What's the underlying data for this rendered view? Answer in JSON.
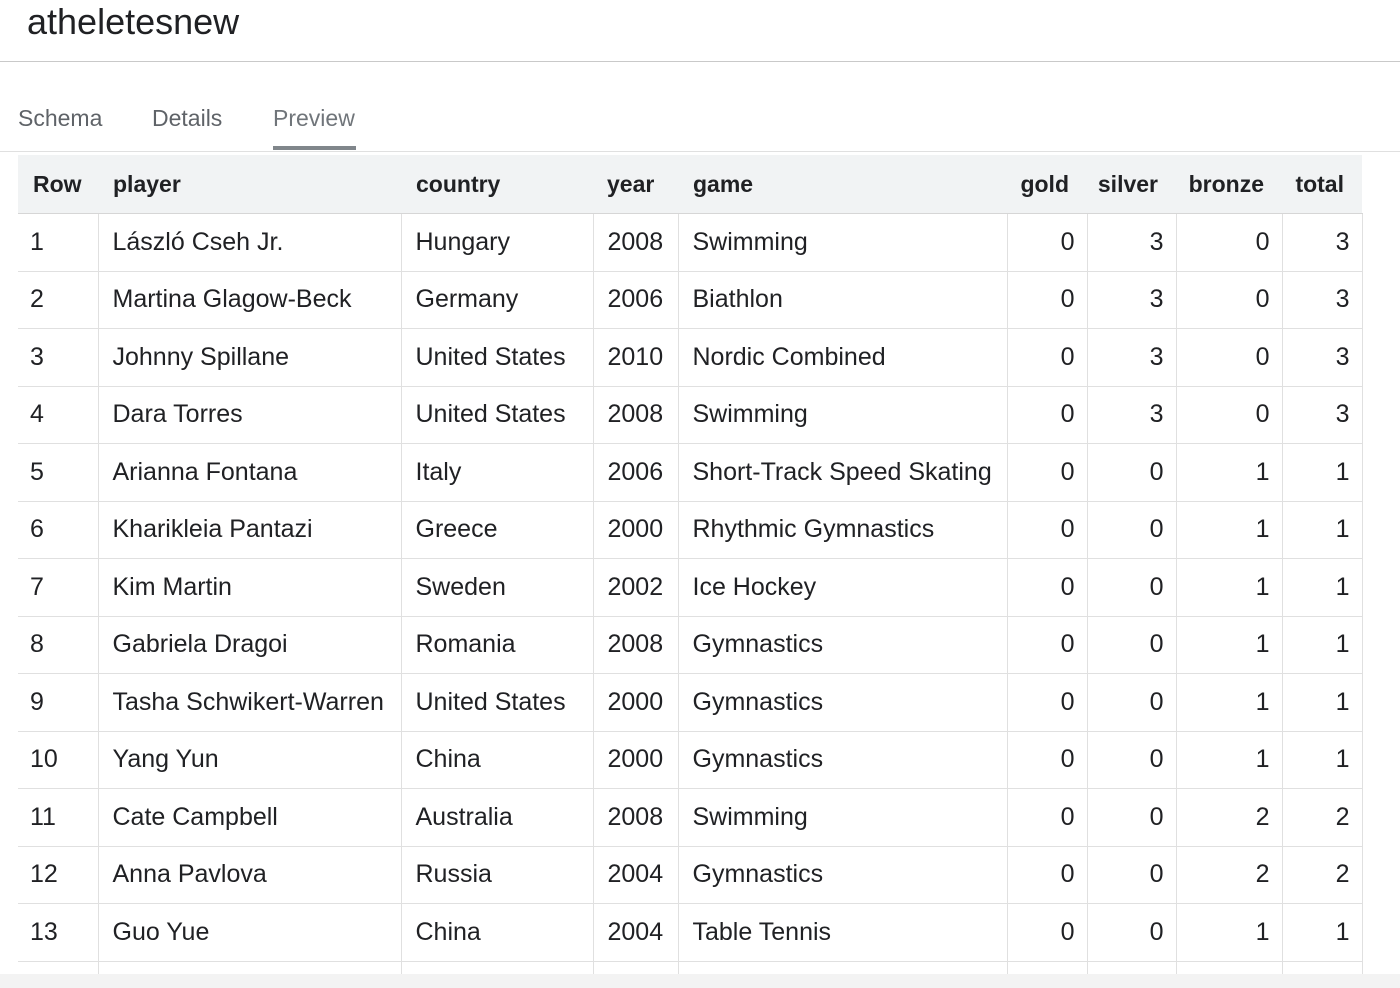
{
  "title": "atheletesnew",
  "tabs": [
    {
      "label": "Schema"
    },
    {
      "label": "Details"
    },
    {
      "label": "Preview"
    }
  ],
  "active_tab": "Preview",
  "table": {
    "headers": [
      "Row",
      "player",
      "country",
      "year",
      "game",
      "gold",
      "silver",
      "bronze",
      "total"
    ],
    "rows": [
      [
        "1",
        "László Cseh Jr.",
        "Hungary",
        "2008",
        "Swimming",
        "0",
        "3",
        "0",
        "3"
      ],
      [
        "2",
        "Martina Glagow-Beck",
        "Germany",
        "2006",
        "Biathlon",
        "0",
        "3",
        "0",
        "3"
      ],
      [
        "3",
        "Johnny Spillane",
        "United States",
        "2010",
        "Nordic Combined",
        "0",
        "3",
        "0",
        "3"
      ],
      [
        "4",
        "Dara Torres",
        "United States",
        "2008",
        "Swimming",
        "0",
        "3",
        "0",
        "3"
      ],
      [
        "5",
        "Arianna Fontana",
        "Italy",
        "2006",
        "Short-Track Speed Skating",
        "0",
        "0",
        "1",
        "1"
      ],
      [
        "6",
        "Kharikleia Pantazi",
        "Greece",
        "2000",
        "Rhythmic Gymnastics",
        "0",
        "0",
        "1",
        "1"
      ],
      [
        "7",
        "Kim Martin",
        "Sweden",
        "2002",
        "Ice Hockey",
        "0",
        "0",
        "1",
        "1"
      ],
      [
        "8",
        "Gabriela Dragoi",
        "Romania",
        "2008",
        "Gymnastics",
        "0",
        "0",
        "1",
        "1"
      ],
      [
        "9",
        "Tasha Schwikert-Warren",
        "United States",
        "2000",
        "Gymnastics",
        "0",
        "0",
        "1",
        "1"
      ],
      [
        "10",
        "Yang Yun",
        "China",
        "2000",
        "Gymnastics",
        "0",
        "0",
        "1",
        "1"
      ],
      [
        "11",
        "Cate Campbell",
        "Australia",
        "2008",
        "Swimming",
        "0",
        "0",
        "2",
        "2"
      ],
      [
        "12",
        "Anna Pavlova",
        "Russia",
        "2004",
        "Gymnastics",
        "0",
        "0",
        "2",
        "2"
      ],
      [
        "13",
        "Guo Yue",
        "China",
        "2004",
        "Table Tennis",
        "0",
        "0",
        "1",
        "1"
      ]
    ]
  },
  "colors": {
    "header_bg": "#f1f3f4",
    "grid_line": "#e0e0e0",
    "tab_text": "#5f6368",
    "active_tab_indicator": "#80868b"
  }
}
